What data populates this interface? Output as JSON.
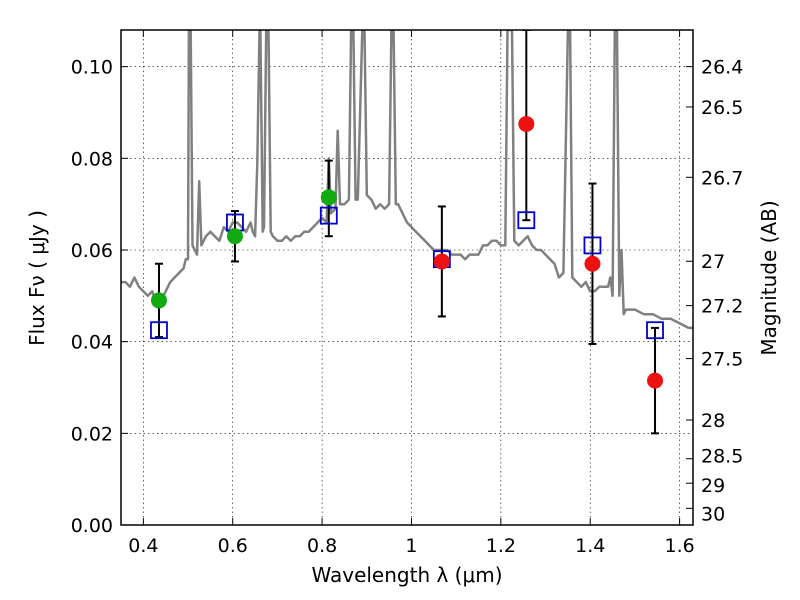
{
  "chart_data": {
    "type": "scatter",
    "xlabel": "Wavelength  λ (μm)",
    "ylabel": "Flux  Fν  ( μJy )",
    "y2label": "Magnitude (AB)",
    "xlim": [
      0.35,
      1.63
    ],
    "ylim": [
      0.0,
      0.108
    ],
    "grid": true,
    "x_ticks": [
      0.4,
      0.6,
      0.8,
      1.0,
      1.2,
      1.4,
      1.6
    ],
    "x_tick_labels": [
      "0.4",
      "0.6",
      "0.8",
      "1",
      "1.2",
      "1.4",
      "1.6"
    ],
    "y_ticks": [
      0.0,
      0.02,
      0.04,
      0.06,
      0.08,
      0.1
    ],
    "y_tick_labels": [
      "0.00",
      "0.02",
      "0.04",
      "0.06",
      "0.08",
      "0.10"
    ],
    "mag_ticks": [
      26.4,
      26.5,
      26.7,
      27,
      27.2,
      27.5,
      28,
      28.5,
      29,
      30
    ],
    "mag_tick_labels": [
      "26.4",
      "26.5",
      "26.7",
      "27",
      "27.2",
      "27.5",
      "28",
      "28.5",
      "29",
      "30"
    ],
    "series": [
      {
        "kind": "line",
        "color": "#808080",
        "points": [
          [
            0.35,
            0.053
          ],
          [
            0.36,
            0.053
          ],
          [
            0.37,
            0.052
          ],
          [
            0.38,
            0.054
          ],
          [
            0.39,
            0.052
          ],
          [
            0.4,
            0.051
          ],
          [
            0.41,
            0.05
          ],
          [
            0.42,
            0.051
          ],
          [
            0.43,
            0.048
          ],
          [
            0.44,
            0.049
          ],
          [
            0.45,
            0.051
          ],
          [
            0.46,
            0.053
          ],
          [
            0.47,
            0.054
          ],
          [
            0.48,
            0.055
          ],
          [
            0.49,
            0.056
          ],
          [
            0.495,
            0.058
          ],
          [
            0.5,
            0.058
          ],
          [
            0.502,
            0.108
          ],
          [
            0.506,
            0.108
          ],
          [
            0.51,
            0.061
          ],
          [
            0.52,
            0.059
          ],
          [
            0.525,
            0.075
          ],
          [
            0.53,
            0.061
          ],
          [
            0.54,
            0.063
          ],
          [
            0.55,
            0.064
          ],
          [
            0.56,
            0.063
          ],
          [
            0.57,
            0.062
          ],
          [
            0.58,
            0.065
          ],
          [
            0.59,
            0.064
          ],
          [
            0.6,
            0.066
          ],
          [
            0.61,
            0.066
          ],
          [
            0.62,
            0.065
          ],
          [
            0.63,
            0.064
          ],
          [
            0.64,
            0.066
          ],
          [
            0.645,
            0.064
          ],
          [
            0.65,
            0.063
          ],
          [
            0.655,
            0.079
          ],
          [
            0.66,
            0.108
          ],
          [
            0.662,
            0.108
          ],
          [
            0.667,
            0.064
          ],
          [
            0.67,
            0.065
          ],
          [
            0.675,
            0.108
          ],
          [
            0.68,
            0.108
          ],
          [
            0.685,
            0.064
          ],
          [
            0.69,
            0.063
          ],
          [
            0.7,
            0.062
          ],
          [
            0.71,
            0.062
          ],
          [
            0.72,
            0.063
          ],
          [
            0.73,
            0.062
          ],
          [
            0.74,
            0.063
          ],
          [
            0.75,
            0.063
          ],
          [
            0.76,
            0.064
          ],
          [
            0.77,
            0.064
          ],
          [
            0.78,
            0.065
          ],
          [
            0.79,
            0.066
          ],
          [
            0.8,
            0.067
          ],
          [
            0.81,
            0.066
          ],
          [
            0.815,
            0.08
          ],
          [
            0.82,
            0.068
          ],
          [
            0.83,
            0.069
          ],
          [
            0.835,
            0.086
          ],
          [
            0.84,
            0.07
          ],
          [
            0.85,
            0.07
          ],
          [
            0.86,
            0.071
          ],
          [
            0.865,
            0.108
          ],
          [
            0.87,
            0.108
          ],
          [
            0.875,
            0.071
          ],
          [
            0.88,
            0.071
          ],
          [
            0.89,
            0.108
          ],
          [
            0.895,
            0.108
          ],
          [
            0.9,
            0.072
          ],
          [
            0.91,
            0.071
          ],
          [
            0.92,
            0.069
          ],
          [
            0.93,
            0.07
          ],
          [
            0.94,
            0.069
          ],
          [
            0.95,
            0.07
          ],
          [
            0.955,
            0.108
          ],
          [
            0.96,
            0.108
          ],
          [
            0.965,
            0.07
          ],
          [
            0.97,
            0.07
          ],
          [
            0.98,
            0.068
          ],
          [
            0.99,
            0.066
          ],
          [
            1.0,
            0.065
          ],
          [
            1.01,
            0.064
          ],
          [
            1.02,
            0.063
          ],
          [
            1.03,
            0.062
          ],
          [
            1.04,
            0.061
          ],
          [
            1.05,
            0.06
          ],
          [
            1.06,
            0.06
          ],
          [
            1.07,
            0.06
          ],
          [
            1.08,
            0.06
          ],
          [
            1.09,
            0.059
          ],
          [
            1.1,
            0.059
          ],
          [
            1.11,
            0.059
          ],
          [
            1.12,
            0.058
          ],
          [
            1.13,
            0.059
          ],
          [
            1.14,
            0.059
          ],
          [
            1.15,
            0.059
          ],
          [
            1.16,
            0.061
          ],
          [
            1.17,
            0.061
          ],
          [
            1.18,
            0.062
          ],
          [
            1.19,
            0.062
          ],
          [
            1.2,
            0.061
          ],
          [
            1.21,
            0.061
          ],
          [
            1.215,
            0.108
          ],
          [
            1.225,
            0.108
          ],
          [
            1.23,
            0.062
          ],
          [
            1.24,
            0.061
          ],
          [
            1.25,
            0.062
          ],
          [
            1.26,
            0.063
          ],
          [
            1.27,
            0.061
          ],
          [
            1.28,
            0.06
          ],
          [
            1.29,
            0.06
          ],
          [
            1.3,
            0.059
          ],
          [
            1.31,
            0.058
          ],
          [
            1.32,
            0.057
          ],
          [
            1.33,
            0.054
          ],
          [
            1.34,
            0.055
          ],
          [
            1.35,
            0.108
          ],
          [
            1.355,
            0.108
          ],
          [
            1.36,
            0.054
          ],
          [
            1.37,
            0.053
          ],
          [
            1.38,
            0.052
          ],
          [
            1.39,
            0.053
          ],
          [
            1.4,
            0.051
          ],
          [
            1.41,
            0.051
          ],
          [
            1.42,
            0.052
          ],
          [
            1.43,
            0.052
          ],
          [
            1.44,
            0.052
          ],
          [
            1.445,
            0.054
          ],
          [
            1.45,
            0.05
          ],
          [
            1.455,
            0.108
          ],
          [
            1.46,
            0.108
          ],
          [
            1.465,
            0.05
          ],
          [
            1.47,
            0.06
          ],
          [
            1.475,
            0.046
          ],
          [
            1.48,
            0.047
          ],
          [
            1.5,
            0.047
          ],
          [
            1.52,
            0.046
          ],
          [
            1.54,
            0.046
          ],
          [
            1.56,
            0.045
          ],
          [
            1.58,
            0.045
          ],
          [
            1.6,
            0.044
          ],
          [
            1.62,
            0.043
          ],
          [
            1.63,
            0.043
          ]
        ]
      },
      {
        "kind": "model-squares",
        "color": "#0000cc",
        "x": [
          0.435,
          0.605,
          0.815,
          1.068,
          1.257,
          1.405,
          1.545
        ],
        "y": [
          0.0425,
          0.066,
          0.0675,
          0.058,
          0.0665,
          0.061,
          0.0425
        ]
      },
      {
        "kind": "points-green",
        "color": "#11aa11",
        "x": [
          0.435,
          0.605,
          0.815
        ],
        "y": [
          0.049,
          0.063,
          0.0715
        ],
        "yerr_low": [
          0.041,
          0.0575,
          0.063
        ],
        "yerr_high": [
          0.057,
          0.0685,
          0.0795
        ]
      },
      {
        "kind": "points-red",
        "color": "#ee1111",
        "x": [
          1.068,
          1.257,
          1.405,
          1.545
        ],
        "y": [
          0.0575,
          0.0875,
          0.057,
          0.0315
        ],
        "yerr_low": [
          0.0455,
          0.0665,
          0.0395,
          0.02
        ],
        "yerr_high": [
          0.0695,
          0.108,
          0.0745,
          0.043
        ]
      }
    ]
  }
}
